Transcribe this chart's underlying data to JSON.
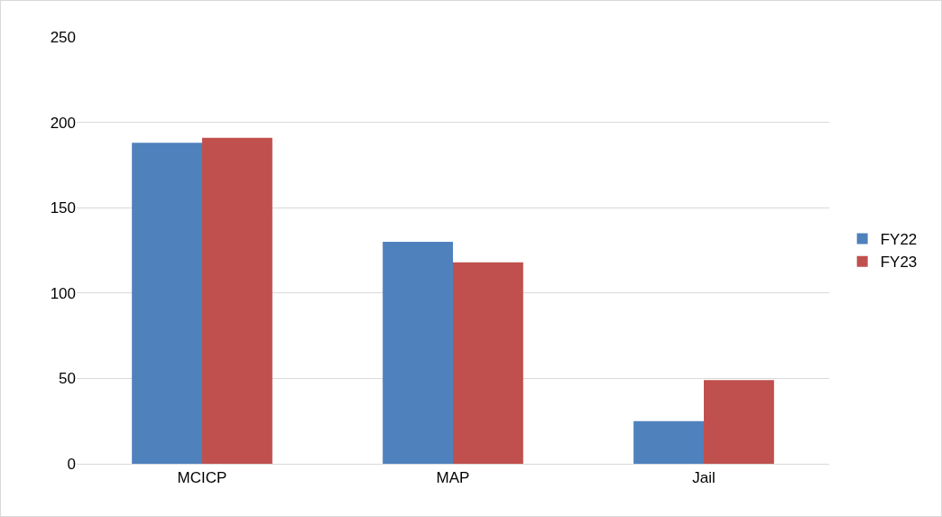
{
  "chart_data": {
    "type": "bar",
    "categories": [
      "MCICP",
      "MAP",
      "Jail"
    ],
    "series": [
      {
        "name": "FY22",
        "color": "#4f81bd",
        "values": [
          188,
          130,
          25
        ]
      },
      {
        "name": "FY23",
        "color": "#c0504d",
        "values": [
          191,
          118,
          49
        ]
      }
    ],
    "ylim": [
      0,
      250
    ],
    "yticks": [
      0,
      50,
      100,
      150,
      200,
      250
    ],
    "grid": "y",
    "legend": "right"
  }
}
